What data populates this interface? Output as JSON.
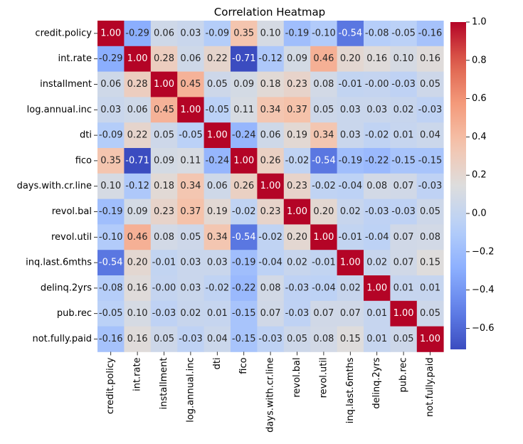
{
  "chart_data": {
    "type": "heatmap",
    "title": "Correlation Heatmap",
    "colormap": "coolwarm",
    "value_range": [
      -0.71,
      1.0
    ],
    "labels": [
      "credit.policy",
      "int.rate",
      "installment",
      "log.annual.inc",
      "dti",
      "fico",
      "days.with.cr.line",
      "revol.bal",
      "revol.util",
      "inq.last.6mths",
      "delinq.2yrs",
      "pub.rec",
      "not.fully.paid"
    ],
    "matrix": [
      [
        1.0,
        -0.29,
        0.06,
        0.03,
        -0.09,
        0.35,
        0.1,
        -0.19,
        -0.1,
        -0.54,
        -0.08,
        -0.05,
        -0.16
      ],
      [
        -0.29,
        1.0,
        0.28,
        0.06,
        0.22,
        -0.71,
        -0.12,
        0.09,
        0.46,
        0.2,
        0.16,
        0.1,
        0.16
      ],
      [
        0.06,
        0.28,
        1.0,
        0.45,
        0.05,
        0.09,
        0.18,
        0.23,
        0.08,
        -0.01,
        -0.0,
        -0.03,
        0.05
      ],
      [
        0.03,
        0.06,
        0.45,
        1.0,
        -0.05,
        0.11,
        0.34,
        0.37,
        0.05,
        0.03,
        0.03,
        0.02,
        -0.03
      ],
      [
        -0.09,
        0.22,
        0.05,
        -0.05,
        1.0,
        -0.24,
        0.06,
        0.19,
        0.34,
        0.03,
        -0.02,
        0.01,
        0.04
      ],
      [
        0.35,
        -0.71,
        0.09,
        0.11,
        -0.24,
        1.0,
        0.26,
        -0.02,
        -0.54,
        -0.19,
        -0.22,
        -0.15,
        -0.15
      ],
      [
        0.1,
        -0.12,
        0.18,
        0.34,
        0.06,
        0.26,
        1.0,
        0.23,
        -0.02,
        -0.04,
        0.08,
        0.07,
        -0.03
      ],
      [
        -0.19,
        0.09,
        0.23,
        0.37,
        0.19,
        -0.02,
        0.23,
        1.0,
        0.2,
        0.02,
        -0.03,
        -0.03,
        0.05
      ],
      [
        -0.1,
        0.46,
        0.08,
        0.05,
        0.34,
        -0.54,
        -0.02,
        0.2,
        1.0,
        -0.01,
        -0.04,
        0.07,
        0.08
      ],
      [
        -0.54,
        0.2,
        -0.01,
        0.03,
        0.03,
        -0.19,
        -0.04,
        0.02,
        -0.01,
        1.0,
        0.02,
        0.07,
        0.15
      ],
      [
        -0.08,
        0.16,
        -0.0,
        0.03,
        -0.02,
        -0.22,
        0.08,
        -0.03,
        -0.04,
        0.02,
        1.0,
        0.01,
        0.01
      ],
      [
        -0.05,
        0.1,
        -0.03,
        0.02,
        0.01,
        -0.15,
        0.07,
        -0.03,
        0.07,
        0.07,
        0.01,
        1.0,
        0.05
      ],
      [
        -0.16,
        0.16,
        0.05,
        -0.03,
        0.04,
        -0.15,
        -0.03,
        0.05,
        0.08,
        0.15,
        0.01,
        0.05,
        1.0
      ]
    ],
    "colorbar": {
      "ticks": [
        1.0,
        0.8,
        0.6,
        0.4,
        0.2,
        0.0,
        -0.2,
        -0.4,
        -0.6
      ],
      "tick_labels": [
        "1.0",
        "0.8",
        "0.6",
        "0.4",
        "0.2",
        "0.0",
        "−0.2",
        "−0.4",
        "−0.6"
      ]
    }
  }
}
